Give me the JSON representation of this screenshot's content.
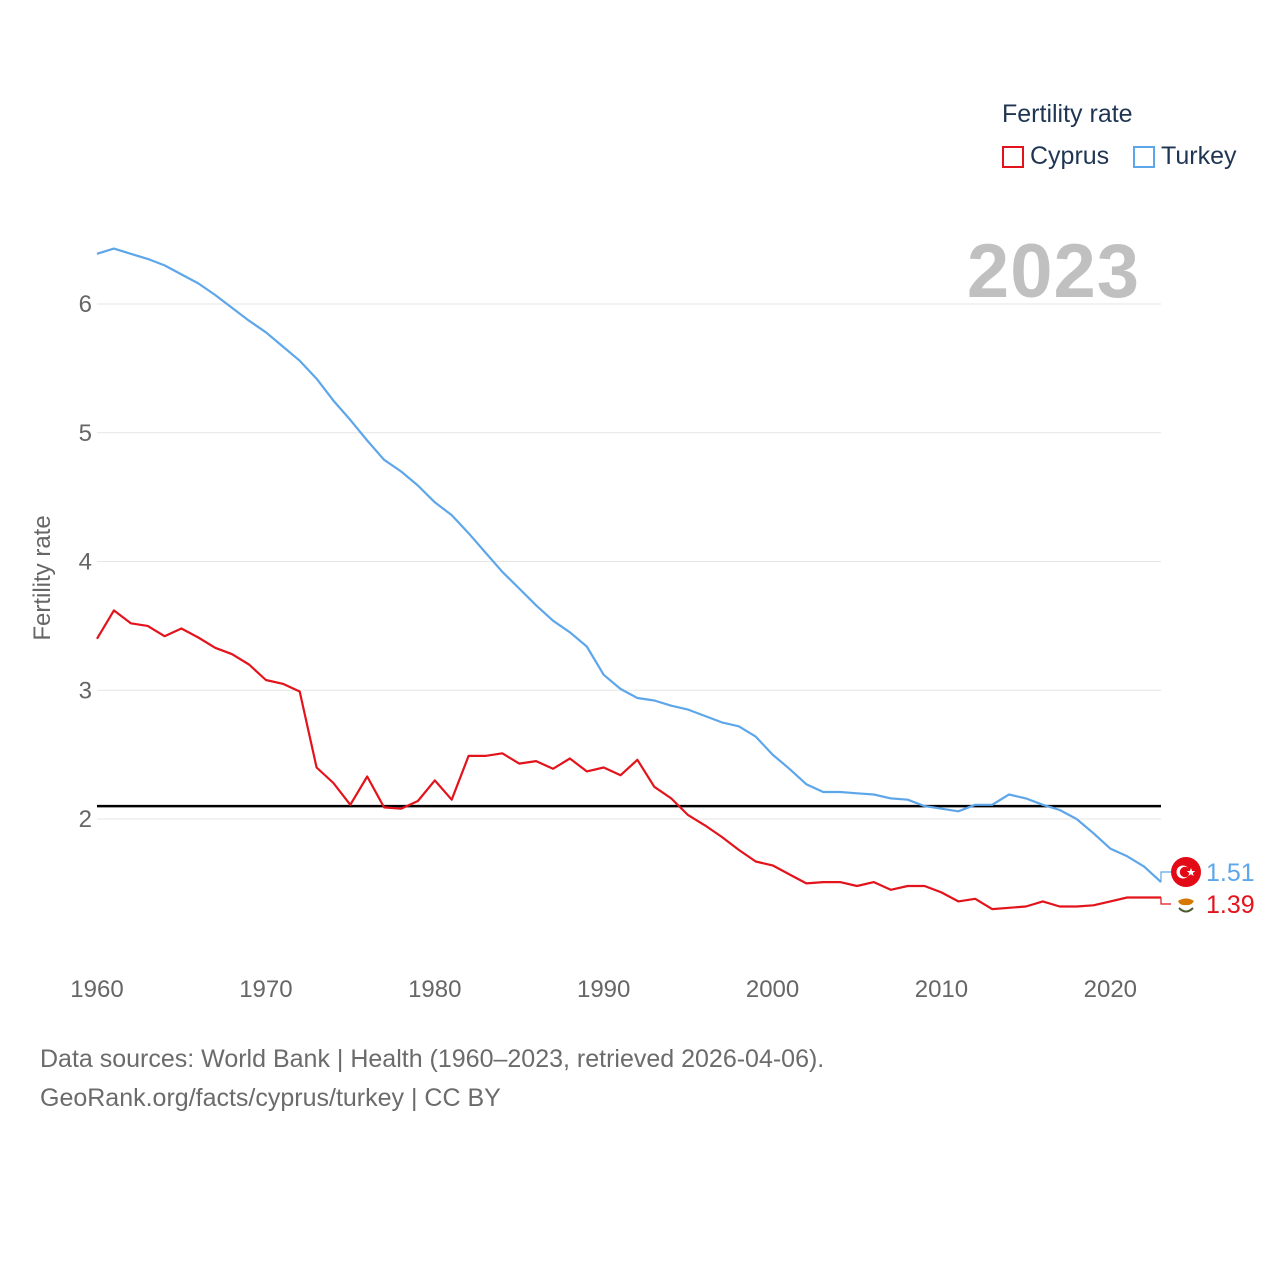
{
  "legend": {
    "title": "Fertility rate",
    "items": [
      {
        "label": "Cyprus",
        "color": "#e3131b"
      },
      {
        "label": "Turkey",
        "color": "#5ea6ea"
      }
    ]
  },
  "current_year": "2023",
  "sources": {
    "line1": "Data sources: World Bank | Health (1960–2023, retrieved 2026-04-06).",
    "line2": "GeoRank.org/facts/cyprus/turkey | CC BY"
  },
  "end_labels": {
    "turkey": "1.51",
    "cyprus": "1.39"
  },
  "icons": {
    "turkey_flag": "turkey-flag-icon",
    "cyprus_flag": "cyprus-flag-icon"
  },
  "chart_data": {
    "type": "line",
    "title": "",
    "xlabel": "",
    "ylabel": "Fertility rate",
    "xlim": [
      1960,
      2023
    ],
    "ylim": [
      1.0,
      6.6
    ],
    "x_ticks": [
      1960,
      1970,
      1980,
      1990,
      2000,
      2010,
      2020
    ],
    "y_ticks": [
      2,
      3,
      4,
      5,
      6
    ],
    "reference_line": {
      "value": 2.1,
      "color": "#000000"
    },
    "x": [
      1960,
      1961,
      1962,
      1963,
      1964,
      1965,
      1966,
      1967,
      1968,
      1969,
      1970,
      1971,
      1972,
      1973,
      1974,
      1975,
      1976,
      1977,
      1978,
      1979,
      1980,
      1981,
      1982,
      1983,
      1984,
      1985,
      1986,
      1987,
      1988,
      1989,
      1990,
      1991,
      1992,
      1993,
      1994,
      1995,
      1996,
      1997,
      1998,
      1999,
      2000,
      2001,
      2002,
      2003,
      2004,
      2005,
      2006,
      2007,
      2008,
      2009,
      2010,
      2011,
      2012,
      2013,
      2014,
      2015,
      2016,
      2017,
      2018,
      2019,
      2020,
      2021,
      2022,
      2023
    ],
    "series": [
      {
        "name": "Cyprus",
        "color": "#e3131b",
        "values": [
          3.4,
          3.62,
          3.52,
          3.5,
          3.42,
          3.48,
          3.41,
          3.33,
          3.28,
          3.2,
          3.08,
          3.05,
          2.99,
          2.4,
          2.28,
          2.11,
          2.33,
          2.09,
          2.08,
          2.14,
          2.3,
          2.15,
          2.49,
          2.49,
          2.51,
          2.43,
          2.45,
          2.39,
          2.47,
          2.37,
          2.4,
          2.34,
          2.46,
          2.25,
          2.16,
          2.03,
          1.95,
          1.86,
          1.76,
          1.67,
          1.64,
          1.57,
          1.5,
          1.51,
          1.51,
          1.48,
          1.51,
          1.45,
          1.48,
          1.48,
          1.43,
          1.36,
          1.38,
          1.3,
          1.31,
          1.32,
          1.36,
          1.32,
          1.32,
          1.33,
          1.36,
          1.39,
          1.39,
          1.39
        ]
      },
      {
        "name": "Turkey",
        "color": "#5ea6ea",
        "values": [
          6.39,
          6.43,
          6.39,
          6.35,
          6.3,
          6.23,
          6.16,
          6.07,
          5.97,
          5.87,
          5.78,
          5.67,
          5.56,
          5.42,
          5.25,
          5.1,
          4.94,
          4.79,
          4.7,
          4.59,
          4.46,
          4.36,
          4.22,
          4.07,
          3.92,
          3.79,
          3.66,
          3.54,
          3.45,
          3.34,
          3.12,
          3.01,
          2.94,
          2.92,
          2.88,
          2.85,
          2.8,
          2.75,
          2.72,
          2.64,
          2.5,
          2.39,
          2.27,
          2.21,
          2.21,
          2.2,
          2.19,
          2.16,
          2.15,
          2.1,
          2.08,
          2.06,
          2.11,
          2.11,
          2.19,
          2.16,
          2.11,
          2.07,
          2.0,
          1.89,
          1.77,
          1.71,
          1.63,
          1.51
        ]
      }
    ]
  }
}
